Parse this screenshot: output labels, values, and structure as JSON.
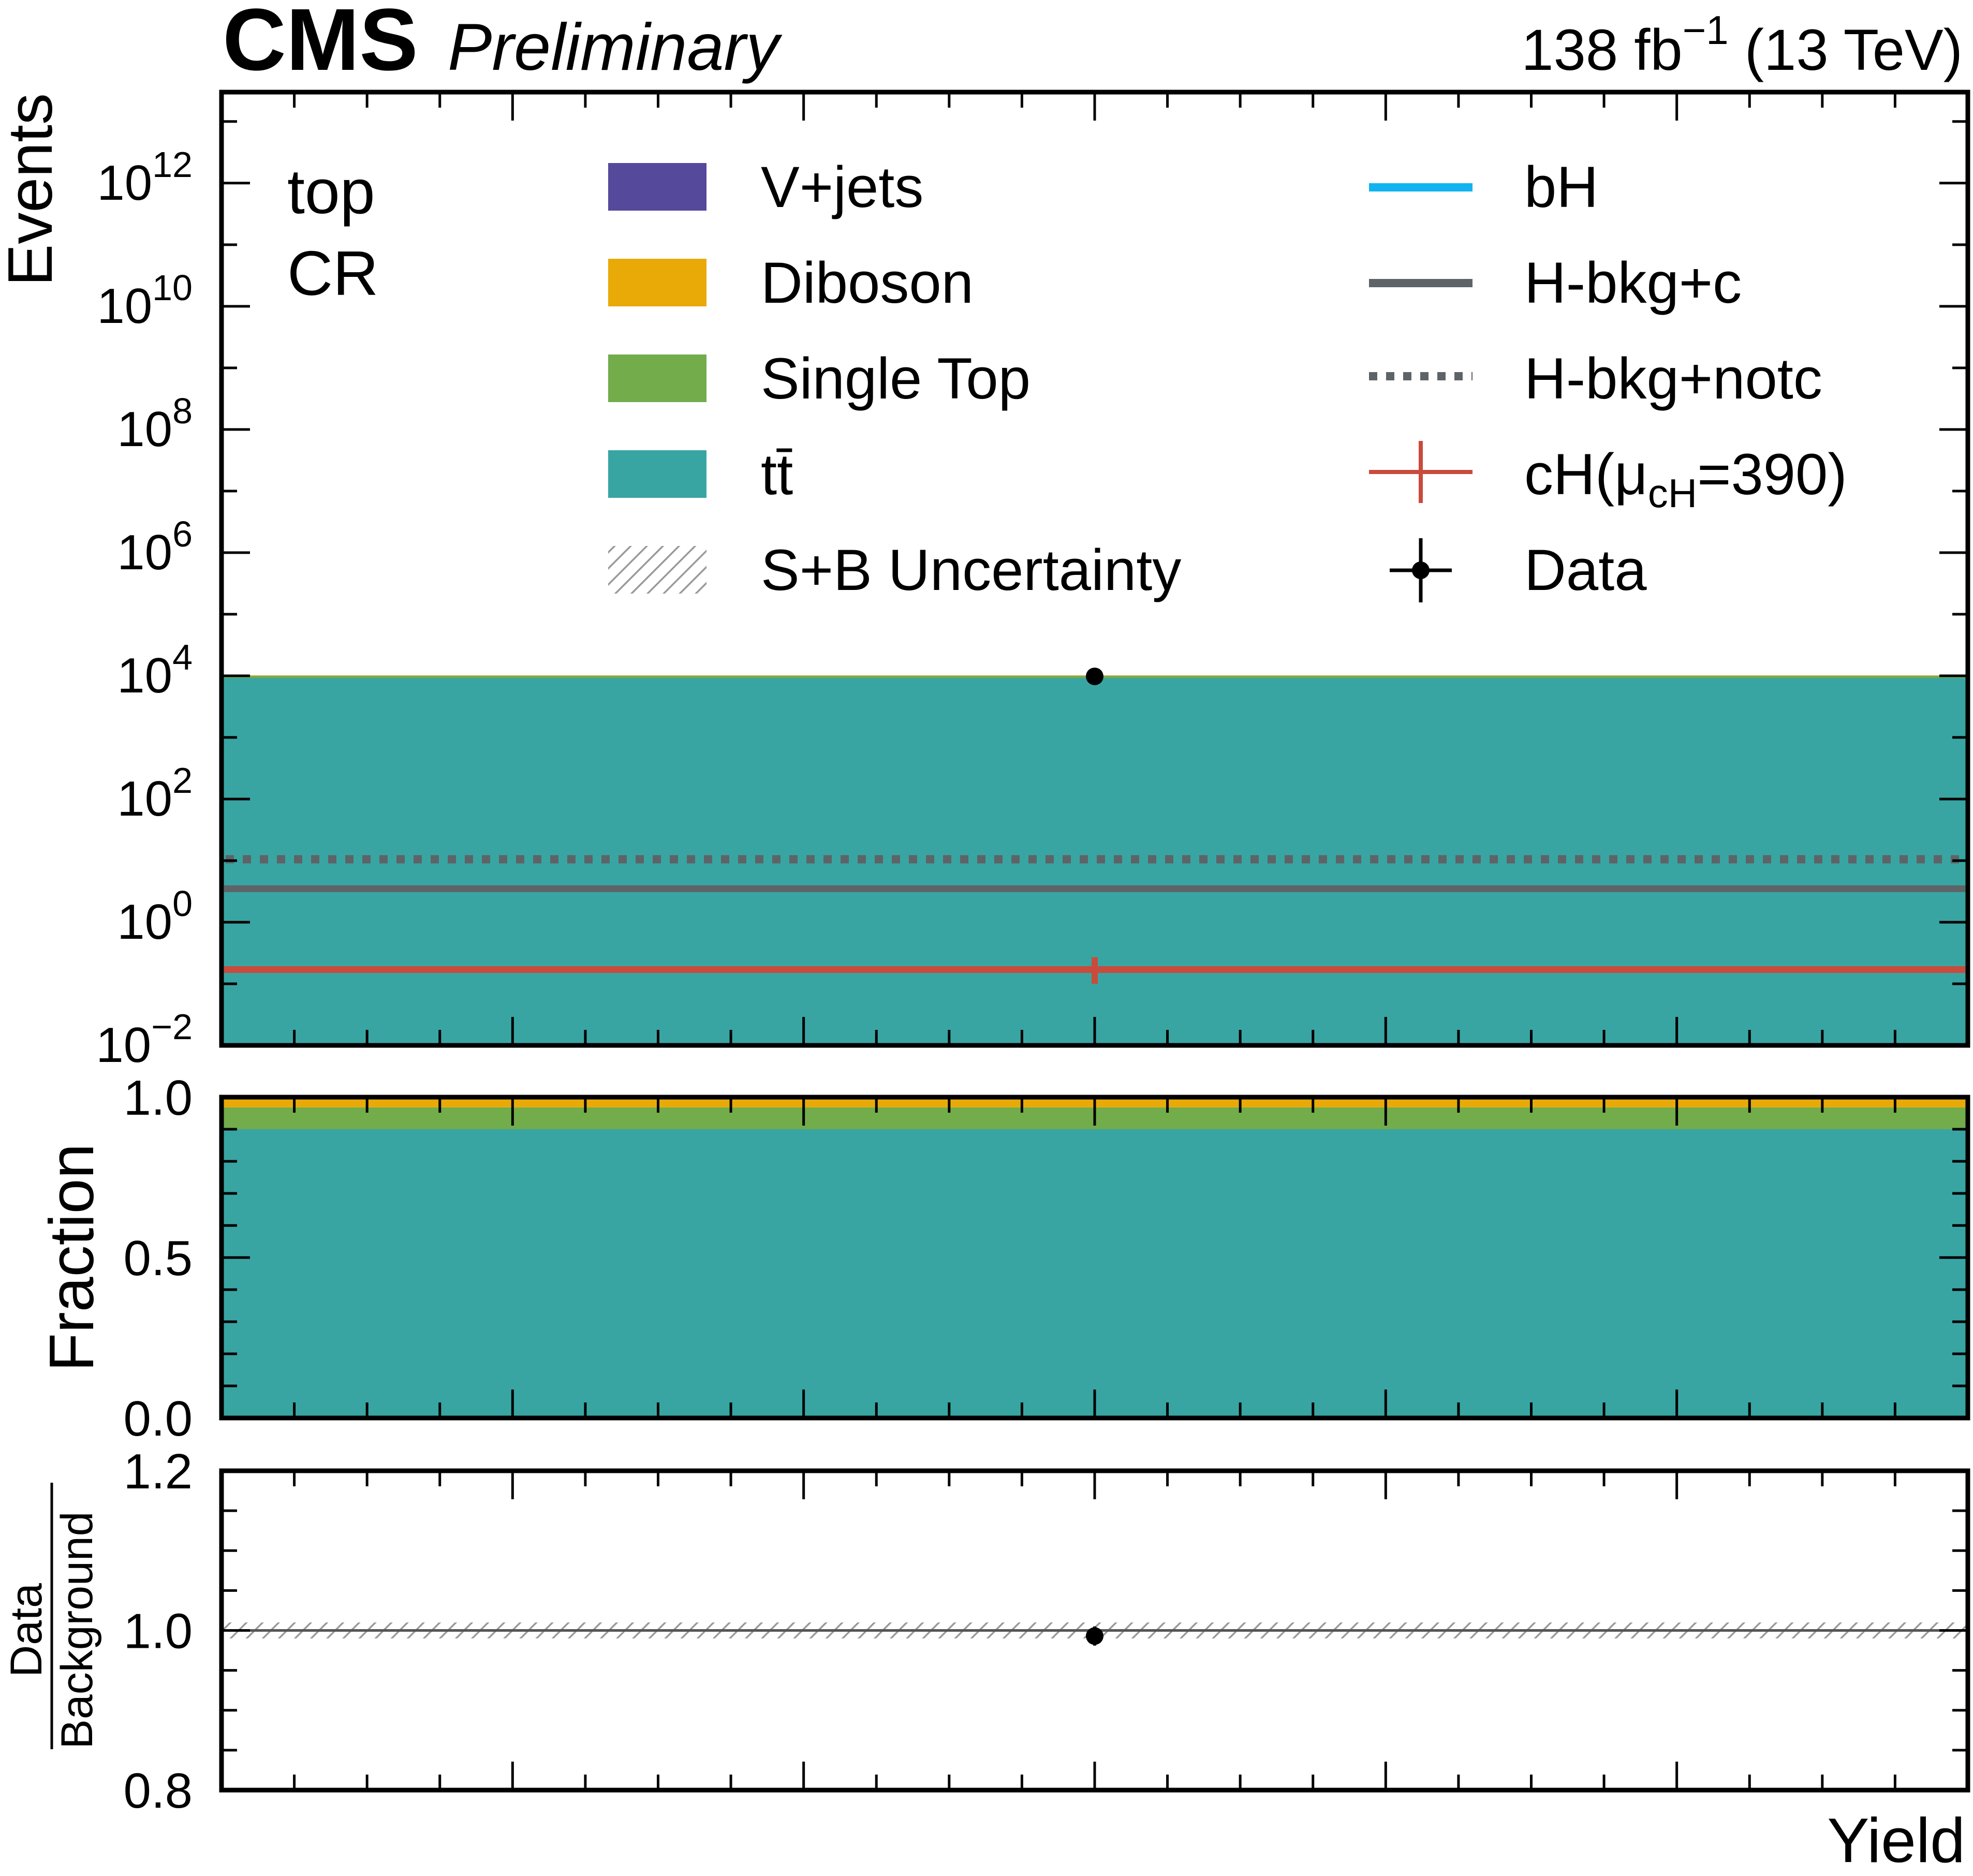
{
  "header": {
    "experiment": "CMS",
    "status": "Preliminary",
    "lumi_text": "138 fb",
    "lumi_exp": "−1",
    "energy_text": "(13 TeV)"
  },
  "region": {
    "line1": "top",
    "line2": "CR"
  },
  "colors": {
    "vjets": "#54499b",
    "diboson": "#e9a907",
    "singletop": "#72ac4b",
    "ttbar": "#38a5a3",
    "bH": "#11b4f0",
    "hbkg": "#5e6367",
    "cH": "#c94b3b",
    "data": "#000000",
    "unc": "#9a9a9a"
  },
  "legend": {
    "vjets": "V+jets",
    "diboson": "Diboson",
    "singletop": "Single Top",
    "ttbar": "tt̄",
    "unc": "S+B Uncertainty",
    "bH": "bH",
    "hbkg_c": "H-bkg+c",
    "hbkg_notc": "H-bkg+notc",
    "cH": "cH(μ",
    "cH_sub": "cH",
    "cH_tail": "=390)",
    "data": "Data"
  },
  "chart_data": [
    {
      "panel": "main",
      "type": "bar",
      "ylabel": "Events",
      "yscale": "log",
      "ylim": [
        0.01,
        30000000000000
      ],
      "y_ticks": [
        {
          "base": "10",
          "exp": "−2"
        },
        {
          "base": "10",
          "exp": "0"
        },
        {
          "base": "10",
          "exp": "2"
        },
        {
          "base": "10",
          "exp": "4"
        },
        {
          "base": "10",
          "exp": "6"
        },
        {
          "base": "10",
          "exp": "8"
        },
        {
          "base": "10",
          "exp": "10"
        },
        {
          "base": "10",
          "exp": "12"
        }
      ],
      "categories": [
        "Yield"
      ],
      "stack": [
        {
          "name": "tt̄",
          "values": [
            9200
          ]
        },
        {
          "name": "Single Top",
          "values": [
            700
          ]
        },
        {
          "name": "Diboson",
          "values": [
            200
          ]
        },
        {
          "name": "V+jets",
          "values": [
            40
          ]
        }
      ],
      "lines": [
        {
          "name": "H-bkg+c",
          "style": "solid",
          "values": [
            3.5
          ]
        },
        {
          "name": "H-bkg+notc",
          "style": "dotted",
          "values": [
            10.5
          ]
        },
        {
          "name": "cH(μcH=390)",
          "style": "solid",
          "values": [
            0.17
          ],
          "err_low": [
            0.1
          ],
          "err_high": [
            0.27
          ]
        }
      ],
      "data": {
        "name": "Data",
        "values": [
          9800
        ]
      }
    },
    {
      "panel": "fraction",
      "type": "bar",
      "ylabel": "Fraction",
      "ylim": [
        0.0,
        1.0
      ],
      "y_ticks": [
        "0.0",
        "0.5",
        "1.0"
      ],
      "stack": [
        {
          "name": "tt̄",
          "values": [
            0.9
          ]
        },
        {
          "name": "Single Top",
          "values": [
            0.068
          ]
        },
        {
          "name": "Diboson",
          "values": [
            0.028
          ]
        },
        {
          "name": "V+jets",
          "values": [
            0.004
          ]
        }
      ]
    },
    {
      "panel": "ratio",
      "type": "scatter",
      "ylabel_num": "Data",
      "ylabel_den": "Background",
      "xlabel": "Yield",
      "ylim": [
        0.8,
        1.2
      ],
      "y_ticks": [
        "0.8",
        "1.0",
        "1.2"
      ],
      "values": [
        0.993
      ],
      "err": [
        0.012
      ],
      "unc_band": [
        0.99,
        1.01
      ]
    }
  ]
}
